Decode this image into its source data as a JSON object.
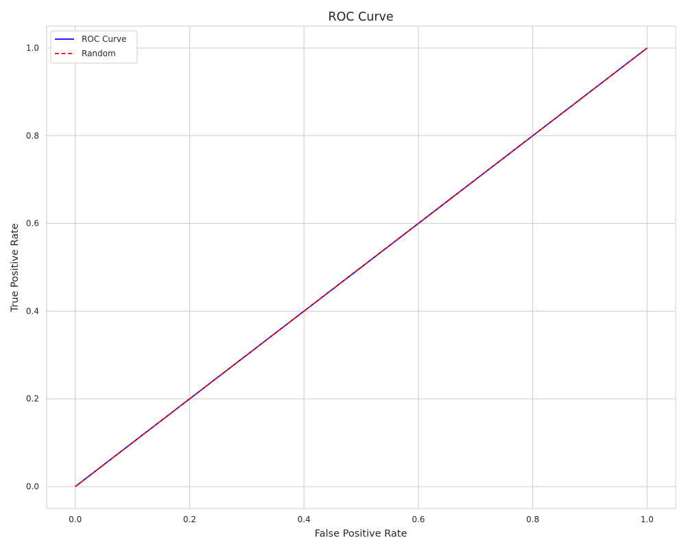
{
  "chart_data": {
    "type": "line",
    "title": "ROC Curve",
    "xlabel": "False Positive Rate",
    "ylabel": "True Positive Rate",
    "xlim": [
      -0.05,
      1.05
    ],
    "ylim": [
      -0.05,
      1.05
    ],
    "xticks": [
      0.0,
      0.2,
      0.4,
      0.6,
      0.8,
      1.0
    ],
    "yticks": [
      0.0,
      0.2,
      0.4,
      0.6,
      0.8,
      1.0
    ],
    "xtick_labels": [
      "0.0",
      "0.2",
      "0.4",
      "0.6",
      "0.8",
      "1.0"
    ],
    "ytick_labels": [
      "0.0",
      "0.2",
      "0.4",
      "0.6",
      "0.8",
      "1.0"
    ],
    "grid": true,
    "legend_position": "top-left",
    "series": [
      {
        "name": "ROC Curve",
        "color": "#0000ff",
        "style": "solid",
        "x": [
          0.0,
          1.0
        ],
        "y": [
          0.0,
          1.0
        ]
      },
      {
        "name": "Random",
        "color": "#ff0000",
        "style": "dashed",
        "x": [
          0.0,
          1.0
        ],
        "y": [
          0.0,
          1.0
        ]
      }
    ]
  }
}
